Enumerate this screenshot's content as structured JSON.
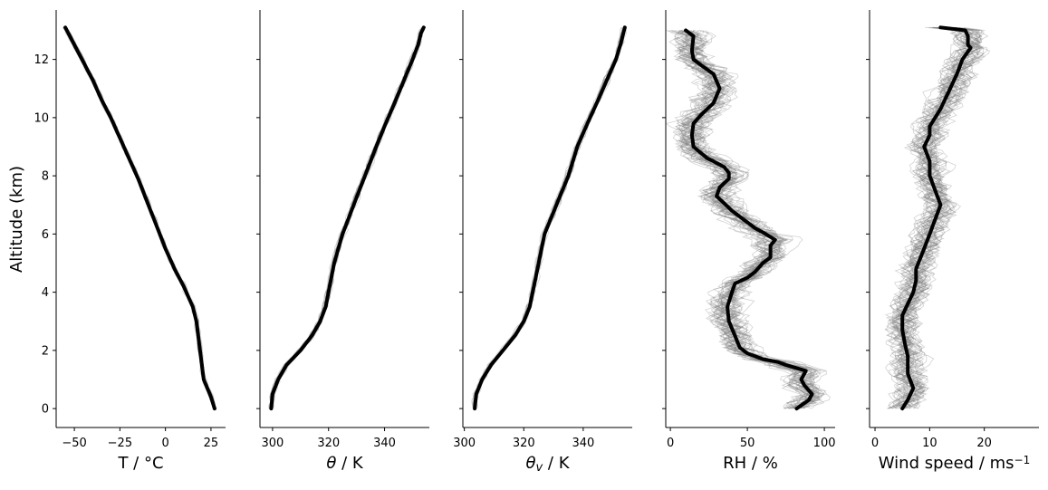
{
  "figure": {
    "ylabel": "Altitude (km)",
    "yticks": [
      0,
      2,
      4,
      6,
      8,
      10,
      12
    ]
  },
  "chart_data": [
    {
      "type": "line",
      "xlabel": "T / °C",
      "xlabel_parts": [
        {
          "t": "T / °C"
        }
      ],
      "xticks": [
        -50,
        -25,
        0,
        25
      ],
      "xlim": [
        -60,
        33
      ],
      "ylim": [
        -0.65,
        13.7
      ],
      "show_y_tick_labels": true,
      "mean": {
        "x": [
          27,
          25,
          21,
          19,
          17,
          15,
          10,
          5,
          0,
          -5,
          -10,
          -15,
          -20,
          -25,
          -30,
          -35,
          -40,
          -45,
          -50,
          -55
        ],
        "y": [
          0,
          0.4,
          1.0,
          2.0,
          3.0,
          3.5,
          4.2,
          4.8,
          5.5,
          6.3,
          7.1,
          7.9,
          8.6,
          9.3,
          10.0,
          10.6,
          11.3,
          11.9,
          12.5,
          13.1
        ]
      },
      "ensemble_spread": 1.5,
      "ensemble_members": 20
    },
    {
      "type": "line",
      "xlabel": "θ / K",
      "xlabel_parts": [
        {
          "t": "θ"
        },
        {
          "t": " / K"
        }
      ],
      "xticks": [
        300,
        320,
        340
      ],
      "xlim": [
        295.5,
        356
      ],
      "ylim": [
        -0.65,
        13.7
      ],
      "show_y_tick_labels": false,
      "mean": {
        "x": [
          299.5,
          300,
          302,
          305,
          310,
          314,
          317,
          319,
          320,
          322,
          325,
          329,
          333,
          337,
          340,
          344,
          347,
          350,
          352,
          353,
          354
        ],
        "y": [
          0,
          0.5,
          1.0,
          1.5,
          2.0,
          2.5,
          3.0,
          3.5,
          4.0,
          5.0,
          6.0,
          7.0,
          8.0,
          9.0,
          9.7,
          10.6,
          11.3,
          12.0,
          12.5,
          12.9,
          13.1
        ]
      },
      "ensemble_spread": 1.2,
      "ensemble_members": 20
    },
    {
      "type": "line",
      "xlabel": "θv / K",
      "xlabel_parts": [
        {
          "t": "θ"
        },
        {
          "t": "v",
          "sub": true
        },
        {
          "t": " / K"
        }
      ],
      "xticks": [
        300,
        320,
        340
      ],
      "xlim": [
        299.5,
        356.5
      ],
      "ylim": [
        -0.65,
        13.7
      ],
      "show_y_tick_labels": false,
      "mean": {
        "x": [
          303.5,
          304,
          306,
          309,
          313,
          317,
          320,
          322,
          323,
          325,
          327,
          331,
          335,
          338,
          341,
          345,
          348,
          351,
          352.5,
          353.5,
          354
        ],
        "y": [
          0,
          0.5,
          1.0,
          1.5,
          2.0,
          2.5,
          3.0,
          3.5,
          4.0,
          5.0,
          6.0,
          7.0,
          8.0,
          9.0,
          9.7,
          10.6,
          11.3,
          12.0,
          12.5,
          12.9,
          13.1
        ]
      },
      "ensemble_spread": 1.2,
      "ensemble_members": 20
    },
    {
      "type": "line",
      "xlabel": "RH / %",
      "xlabel_parts": [
        {
          "t": "RH / %"
        }
      ],
      "xticks": [
        0,
        50,
        100
      ],
      "xlim": [
        -3,
        107
      ],
      "ylim": [
        -0.65,
        13.7
      ],
      "show_y_tick_labels": false,
      "mean": {
        "x": [
          82,
          90,
          92,
          87,
          85,
          88,
          75,
          70,
          60,
          50,
          45,
          42,
          38,
          37,
          40,
          42,
          50,
          55,
          60,
          65,
          65,
          68,
          62,
          55,
          50,
          45,
          40,
          36,
          30,
          32,
          38,
          38,
          35,
          28,
          24,
          15,
          14,
          15,
          20,
          28,
          32,
          28,
          20,
          15,
          14,
          15,
          10
        ],
        "y": [
          0,
          0.3,
          0.5,
          0.8,
          1.0,
          1.3,
          1.5,
          1.6,
          1.7,
          1.9,
          2.1,
          2.5,
          3.0,
          3.5,
          4.0,
          4.3,
          4.5,
          4.7,
          5.0,
          5.2,
          5.6,
          5.8,
          6.0,
          6.2,
          6.4,
          6.6,
          6.8,
          7.0,
          7.3,
          7.6,
          7.9,
          8.1,
          8.3,
          8.5,
          8.6,
          9.0,
          9.4,
          9.8,
          10.1,
          10.5,
          11.0,
          11.5,
          11.8,
          12.0,
          12.3,
          12.8,
          13.0
        ]
      },
      "ensemble_spread": 14,
      "ensemble_members": 40
    },
    {
      "type": "line",
      "xlabel": "Wind speed / ms−1",
      "xlabel_parts": [
        {
          "t": "Wind speed / ms"
        },
        {
          "t": "−1",
          "sup": true
        }
      ],
      "xticks": [
        0,
        10,
        20
      ],
      "xlim": [
        -1,
        30
      ],
      "ylim": [
        -0.65,
        13.7
      ],
      "show_y_tick_labels": false,
      "mean": {
        "x": [
          5,
          6,
          7,
          6,
          6,
          5.5,
          5,
          5,
          6,
          7,
          7.5,
          7.5,
          9,
          10,
          11,
          12,
          11,
          10,
          10,
          9,
          10,
          10,
          11,
          12,
          13,
          14,
          15,
          16,
          17.5,
          17,
          17,
          16.5,
          12
        ],
        "y": [
          0,
          0.3,
          0.7,
          1.2,
          1.8,
          2.2,
          2.7,
          3.2,
          3.6,
          4.0,
          4.4,
          4.8,
          5.5,
          6.0,
          6.5,
          7.0,
          7.5,
          8.0,
          8.5,
          9.0,
          9.4,
          9.7,
          10.0,
          10.3,
          10.7,
          11.1,
          11.5,
          12.0,
          12.4,
          12.5,
          12.8,
          13.0,
          13.1
        ]
      },
      "ensemble_spread": 3.5,
      "ensemble_members": 40
    }
  ]
}
